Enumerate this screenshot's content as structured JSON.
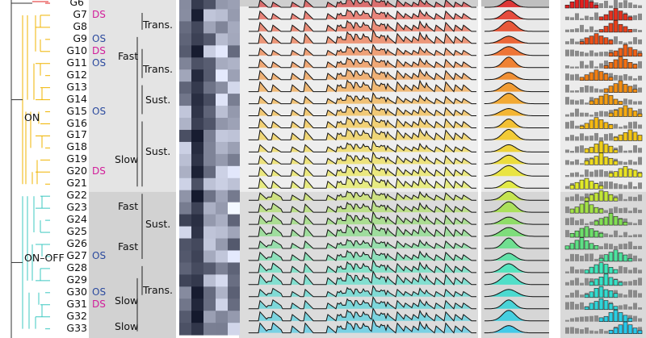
{
  "groups": [
    "G6",
    "G7",
    "G8",
    "G9",
    "G10",
    "G11",
    "G12",
    "G13",
    "G14",
    "G15",
    "G16",
    "G17",
    "G18",
    "G19",
    "G20",
    "G21",
    "G22",
    "G23",
    "G24",
    "G25",
    "G26",
    "G27",
    "G28",
    "G29",
    "G30",
    "G31",
    "G32",
    "G33"
  ],
  "tags": [
    {
      "group": "G7",
      "text": "DS"
    },
    {
      "group": "G9",
      "text": "OS"
    },
    {
      "group": "G10",
      "text": "DS"
    },
    {
      "group": "G11",
      "text": "OS"
    },
    {
      "group": "G15",
      "text": "OS"
    },
    {
      "group": "G20",
      "text": "DS"
    },
    {
      "group": "G27",
      "text": "OS"
    },
    {
      "group": "G30",
      "text": "OS"
    },
    {
      "group": "G31",
      "text": "DS"
    }
  ],
  "super_clusters": {
    "on": "ON",
    "on_off": "ON–OFF"
  },
  "categories": {
    "trans1": "Trans.",
    "fast1": "Fast",
    "trans2": "Trans.",
    "sust1": "Sust.",
    "slow1": "Slow",
    "sust2": "Sust.",
    "fast2": "Fast",
    "sust3": "Sust.",
    "fast3": "Fast",
    "trans3": "Trans.",
    "slow2": "Slow",
    "slow3": "Slow"
  },
  "colors": {
    "ds": "#d21d9a",
    "os": "#2b4a9e",
    "on_tree": "#f0b400",
    "onoff_tree": "#3cc8c0",
    "panel_bg": "#e4e4e4",
    "panel_bg_dark": "#d2d2d2"
  }
}
